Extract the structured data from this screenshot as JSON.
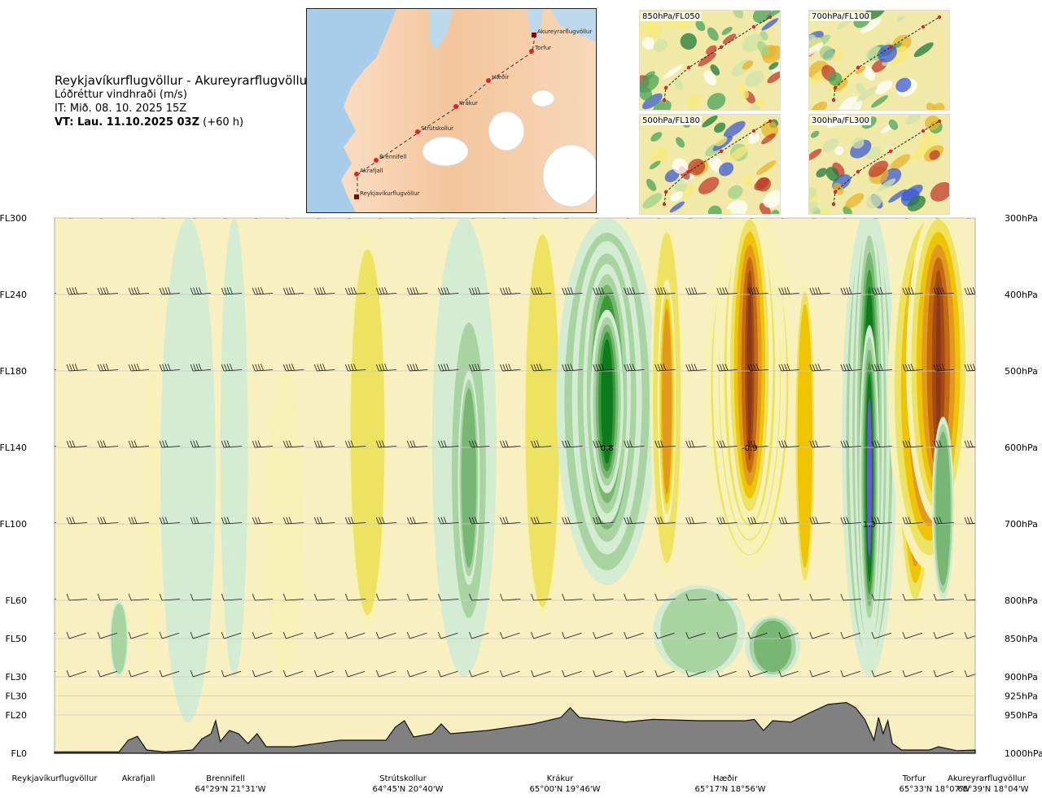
{
  "header": {
    "title": "Reykjavíkurflugvöllur - Akureyrarflugvöllur",
    "subtitle": "Lóðréttur vindhraði (m/s)",
    "issue_time": "IT: Mið. 08. 10. 2025 15Z",
    "valid_time_label": "VT: Lau. 11.10.2025 03Z",
    "valid_time_offset": "(+60 h)"
  },
  "route_map": {
    "points": [
      {
        "name": "Reykjavíkurflugvöllur"
      },
      {
        "name": "Akrafjall"
      },
      {
        "name": "Brennifell"
      },
      {
        "name": "Strútskollur"
      },
      {
        "name": "Krákur"
      },
      {
        "name": "Hæðir"
      },
      {
        "name": "Torfur"
      },
      {
        "name": "Akureyrarflugvöllur"
      }
    ]
  },
  "mini_maps": [
    {
      "label": "850hPa/FL050"
    },
    {
      "label": "700hPa/FL100"
    },
    {
      "label": "500hPa/FL180"
    },
    {
      "label": "300hPa/FL300"
    }
  ],
  "chart_data": {
    "type": "heatmap",
    "title": "Lóðréttur vindhraði (m/s)",
    "x_positions": [
      0,
      0.08,
      0.19,
      0.38,
      0.56,
      0.74,
      0.94,
      1.0
    ],
    "x_labels": [
      {
        "name": "Reykjavíkurflugvöllur",
        "coord": ""
      },
      {
        "name": "Akrafjall",
        "coord": ""
      },
      {
        "name": "Brennifell",
        "coord": "64°29'N 21°31'W"
      },
      {
        "name": "Strútskollur",
        "coord": "64°45'N 20°40'W"
      },
      {
        "name": "Krákur",
        "coord": "65°00'N 19°46'W"
      },
      {
        "name": "Hæðir",
        "coord": "65°17'N 18°56'W"
      },
      {
        "name": "Torfur",
        "coord": "65°33'N 18°07'W"
      },
      {
        "name": "Akureyrarflugvöllur",
        "coord": "65°39'N 18°04'W"
      }
    ],
    "y_levels": [
      {
        "fl": "FL300",
        "hpa": "300hPa",
        "p": 300
      },
      {
        "fl": "FL240",
        "hpa": "400hPa",
        "p": 400
      },
      {
        "fl": "FL180",
        "hpa": "500hPa",
        "p": 500
      },
      {
        "fl": "FL140",
        "hpa": "600hPa",
        "p": 600
      },
      {
        "fl": "FL100",
        "hpa": "700hPa",
        "p": 700
      },
      {
        "fl": "FL60",
        "hpa": "800hPa",
        "p": 800
      },
      {
        "fl": "FL50",
        "hpa": "850hPa",
        "p": 850
      },
      {
        "fl": "FL30",
        "hpa": "900hPa",
        "p": 900
      },
      {
        "fl": "FL30",
        "hpa": "925hPa",
        "p": 925
      },
      {
        "fl": "FL20",
        "hpa": "950hPa",
        "p": 950
      },
      {
        "fl": "FL0",
        "hpa": "1000hPa",
        "p": 1000
      }
    ],
    "ylim_hpa": [
      300,
      1000
    ],
    "contour_labels": [
      {
        "text": "0.8",
        "x": 0.6,
        "p": 600
      },
      {
        "text": "-0.9",
        "x": 0.755,
        "p": 600
      },
      {
        "text": "1.3",
        "x": 0.885,
        "p": 700
      }
    ],
    "features": [
      {
        "sign": "down",
        "center_x": 0.75,
        "center_p": 560,
        "intensity": "strong"
      },
      {
        "sign": "up",
        "center_x": 0.885,
        "center_p": 600,
        "intensity": "strong"
      },
      {
        "sign": "up",
        "center_x": 0.6,
        "center_p": 550,
        "intensity": "moderate"
      },
      {
        "sign": "down",
        "center_x": 0.95,
        "center_p": 400,
        "intensity": "strong"
      }
    ],
    "colorscale": {
      "up": [
        "#d4ecd1",
        "#a8d4a2",
        "#78b673",
        "#3a9a3a",
        "#0e7a1e",
        "#1a6f3c",
        "#6a5ad8"
      ],
      "down": [
        "#f7f1b8",
        "#ede360",
        "#efc400",
        "#e29a1e",
        "#c66a10",
        "#a24a14",
        "#8a3a16"
      ],
      "neutral": "#f8f0c0"
    }
  }
}
